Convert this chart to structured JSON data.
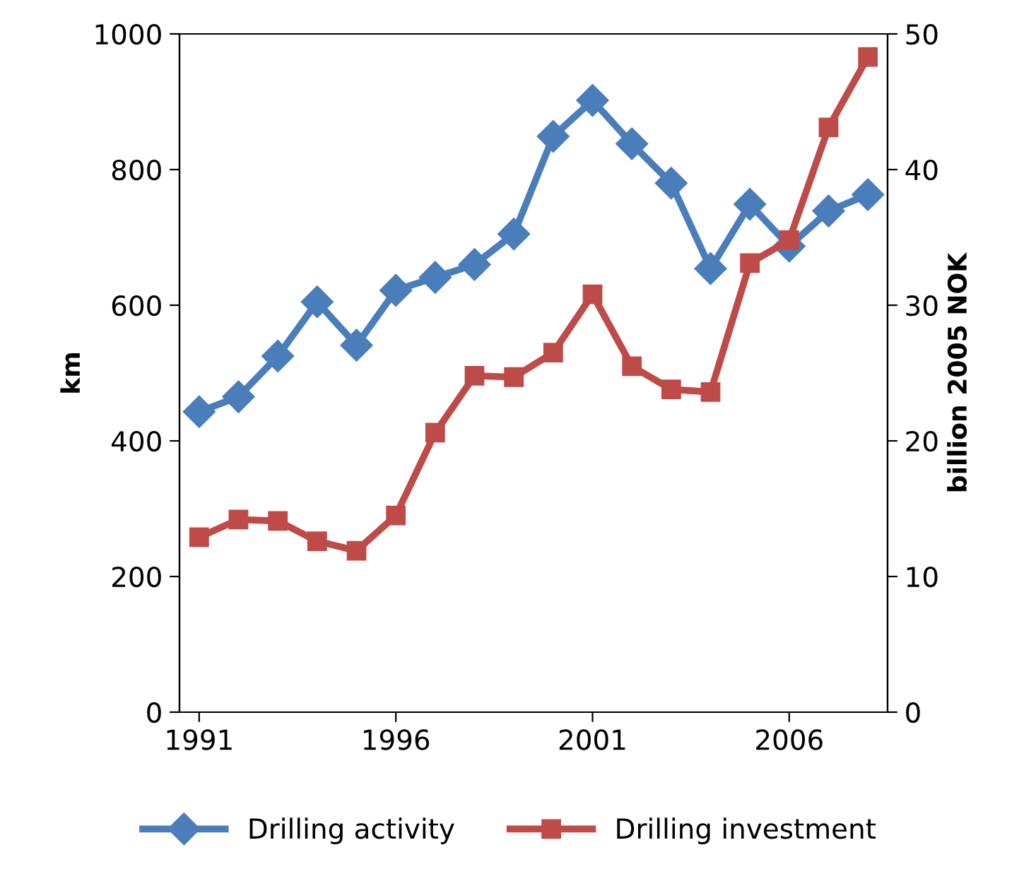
{
  "chart_data": {
    "type": "line",
    "ylabel": "km",
    "y2label": "billion 2005 NOK",
    "x": [
      1991,
      1992,
      1993,
      1994,
      1995,
      1996,
      1997,
      1998,
      1999,
      2000,
      2001,
      2002,
      2003,
      2004,
      2005,
      2006,
      2007,
      2008
    ],
    "xlim": [
      1990.5,
      2008.5
    ],
    "xticks": [
      1991,
      1996,
      2001,
      2006
    ],
    "ylim": [
      0,
      1000
    ],
    "yticks": [
      0,
      200,
      400,
      600,
      800,
      1000
    ],
    "y2lim": [
      0,
      50
    ],
    "y2ticks": [
      0,
      10,
      20,
      30,
      40,
      50
    ],
    "grid": false,
    "legend": "bottom",
    "series": [
      {
        "name": "Drilling activity",
        "color": "#4a7ebb",
        "marker": "diamond",
        "values": [
          443,
          465,
          525,
          605,
          541,
          622,
          641,
          660,
          705,
          849,
          902,
          838,
          780,
          654,
          749,
          687,
          739,
          763
        ]
      },
      {
        "name": "Drilling investment",
        "color": "#be4b48",
        "marker": "square",
        "axis": "y2",
        "values": [
          12.9,
          14.2,
          14.1,
          12.6,
          11.9,
          14.5,
          20.6,
          24.8,
          24.7,
          26.5,
          30.8,
          25.5,
          23.8,
          23.6,
          33.1,
          34.8,
          43.1,
          48.3
        ]
      }
    ]
  }
}
